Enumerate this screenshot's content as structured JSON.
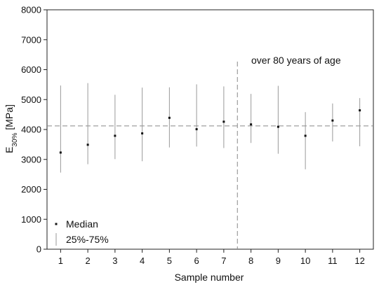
{
  "chart_data": {
    "type": "scatter",
    "xlabel": "Sample number",
    "ylabel_main": "E",
    "ylabel_sub": "30%",
    "ylabel_unit": " [MPa]",
    "ylim": [
      0,
      8000
    ],
    "yticks": [
      0,
      1000,
      2000,
      3000,
      4000,
      5000,
      6000,
      7000,
      8000
    ],
    "xlim": [
      0.5,
      12.5
    ],
    "categories": [
      "1",
      "2",
      "3",
      "4",
      "5",
      "6",
      "7",
      "8",
      "9",
      "10",
      "11",
      "12"
    ],
    "series": [
      {
        "name": "Median",
        "values": [
          3230,
          3490,
          3790,
          3870,
          4390,
          4010,
          4260,
          4170,
          4090,
          3790,
          4300,
          4640
        ]
      },
      {
        "name": "25%-75%",
        "low": [
          2560,
          2840,
          3010,
          2940,
          3400,
          3430,
          3380,
          3550,
          3190,
          2670,
          3600,
          3440
        ],
        "high": [
          5470,
          5550,
          5160,
          5400,
          5410,
          5510,
          5440,
          5190,
          5460,
          4580,
          4870,
          5050
        ]
      }
    ],
    "reference_line_y": 4120,
    "divider_x": 7.5,
    "annotation": "over 80 years of age",
    "grid": false,
    "legend_position": "bottom-left"
  }
}
